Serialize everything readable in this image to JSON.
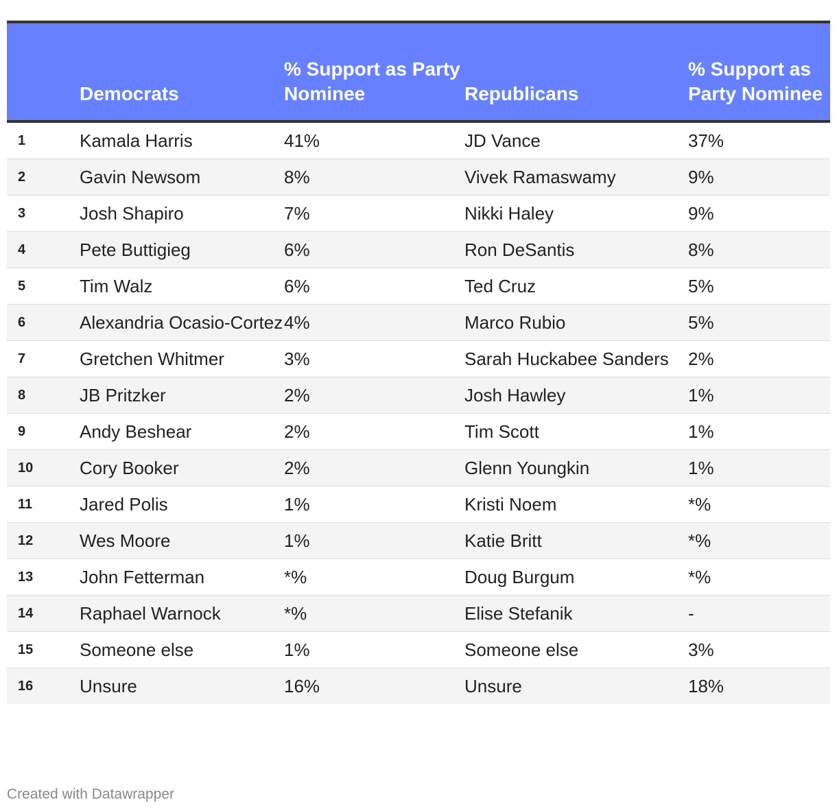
{
  "chart_data": {
    "type": "table",
    "columns": [
      "",
      "Democrats",
      "% Support as Party Nominee",
      "Republicans",
      "% Support as Party Nominee"
    ],
    "rows": [
      {
        "rank": "1",
        "dem": "Kamala Harris",
        "dem_pct": "41%",
        "rep": "JD Vance",
        "rep_pct": "37%"
      },
      {
        "rank": "2",
        "dem": "Gavin Newsom",
        "dem_pct": "8%",
        "rep": "Vivek Ramaswamy",
        "rep_pct": "9%"
      },
      {
        "rank": "3",
        "dem": "Josh Shapiro",
        "dem_pct": "7%",
        "rep": "Nikki Haley",
        "rep_pct": "9%"
      },
      {
        "rank": "4",
        "dem": "Pete Buttigieg",
        "dem_pct": "6%",
        "rep": "Ron DeSantis",
        "rep_pct": "8%"
      },
      {
        "rank": "5",
        "dem": "Tim Walz",
        "dem_pct": "6%",
        "rep": "Ted Cruz",
        "rep_pct": "5%"
      },
      {
        "rank": "6",
        "dem": "Alexandria Ocasio-Cortez",
        "dem_pct": "4%",
        "rep": "Marco Rubio",
        "rep_pct": "5%"
      },
      {
        "rank": "7",
        "dem": "Gretchen Whitmer",
        "dem_pct": "3%",
        "rep": "Sarah Huckabee Sanders",
        "rep_pct": "2%"
      },
      {
        "rank": "8",
        "dem": "JB Pritzker",
        "dem_pct": "2%",
        "rep": "Josh Hawley",
        "rep_pct": "1%"
      },
      {
        "rank": "9",
        "dem": "Andy Beshear",
        "dem_pct": "2%",
        "rep": "Tim Scott",
        "rep_pct": "1%"
      },
      {
        "rank": "10",
        "dem": "Cory Booker",
        "dem_pct": "2%",
        "rep": "Glenn Youngkin",
        "rep_pct": "1%"
      },
      {
        "rank": "11",
        "dem": "Jared Polis",
        "dem_pct": "1%",
        "rep": "Kristi Noem",
        "rep_pct": "*%"
      },
      {
        "rank": "12",
        "dem": "Wes Moore",
        "dem_pct": "1%",
        "rep": "Katie Britt",
        "rep_pct": "*%"
      },
      {
        "rank": "13",
        "dem": "John Fetterman",
        "dem_pct": "*%",
        "rep": "Doug Burgum",
        "rep_pct": "*%"
      },
      {
        "rank": "14",
        "dem": "Raphael Warnock",
        "dem_pct": "*%",
        "rep": "Elise Stefanik",
        "rep_pct": "-"
      },
      {
        "rank": "15",
        "dem": "Someone else",
        "dem_pct": "1%",
        "rep": "Someone else",
        "rep_pct": "3%"
      },
      {
        "rank": "16",
        "dem": "Unsure",
        "dem_pct": "16%",
        "rep": "Unsure",
        "rep_pct": "18%"
      }
    ]
  },
  "colors": {
    "header_bg": "#6680ff",
    "header_text": "#ffffff",
    "stripe_bg": "#f4f4f4"
  },
  "footer": {
    "credit": "Created with Datawrapper"
  }
}
